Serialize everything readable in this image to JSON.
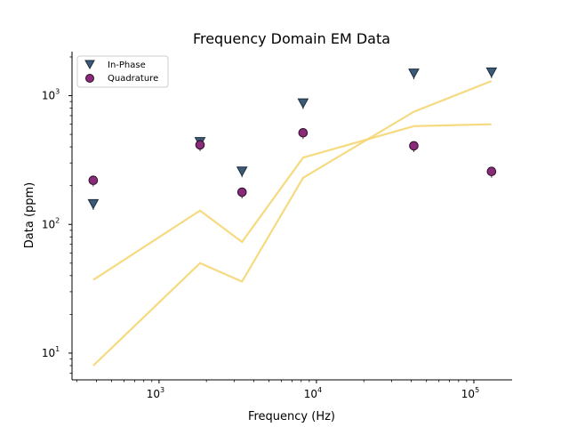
{
  "chart_data": {
    "type": "scatter",
    "title": "Frequency Domain EM Data",
    "xlabel": "Frequency (Hz)",
    "ylabel": "Data (ppm)",
    "xscale": "log",
    "yscale": "log",
    "xlim": [
      280,
      175000
    ],
    "ylim": [
      6.2,
      2200
    ],
    "grid": false,
    "legend_position": "top-left",
    "x_ticks": [
      {
        "value": 1000,
        "base": "10",
        "exp": "3"
      },
      {
        "value": 10000,
        "base": "10",
        "exp": "4"
      },
      {
        "value": 100000,
        "base": "10",
        "exp": "5"
      }
    ],
    "y_ticks": [
      {
        "value": 10,
        "base": "10",
        "exp": "1"
      },
      {
        "value": 100,
        "base": "10",
        "exp": "2"
      },
      {
        "value": 1000,
        "base": "10",
        "exp": "3"
      }
    ],
    "series": [
      {
        "name": "In-Phase",
        "marker": "triangle-down",
        "color": "#3b5a78",
        "x": [
          382,
          1822,
          3367,
          8222,
          41567,
          129500
        ],
        "y": [
          145,
          440,
          260,
          880,
          1500,
          1530
        ]
      },
      {
        "name": "Quadrature",
        "marker": "circle",
        "color": "#8a2b7a",
        "x": [
          382,
          1822,
          3367,
          8222,
          41567,
          129500
        ],
        "y": [
          220,
          415,
          178,
          515,
          408,
          258
        ]
      }
    ],
    "lines": [
      {
        "color": "#f5d36a",
        "x": [
          382,
          1822,
          3367,
          8222,
          41567,
          129500
        ],
        "y": [
          37,
          128,
          73,
          330,
          580,
          600
        ]
      },
      {
        "color": "#f5d36a",
        "x": [
          382,
          1822,
          3367,
          8222,
          41567,
          129500
        ],
        "y": [
          8,
          50,
          36,
          230,
          750,
          1300
        ]
      }
    ]
  }
}
